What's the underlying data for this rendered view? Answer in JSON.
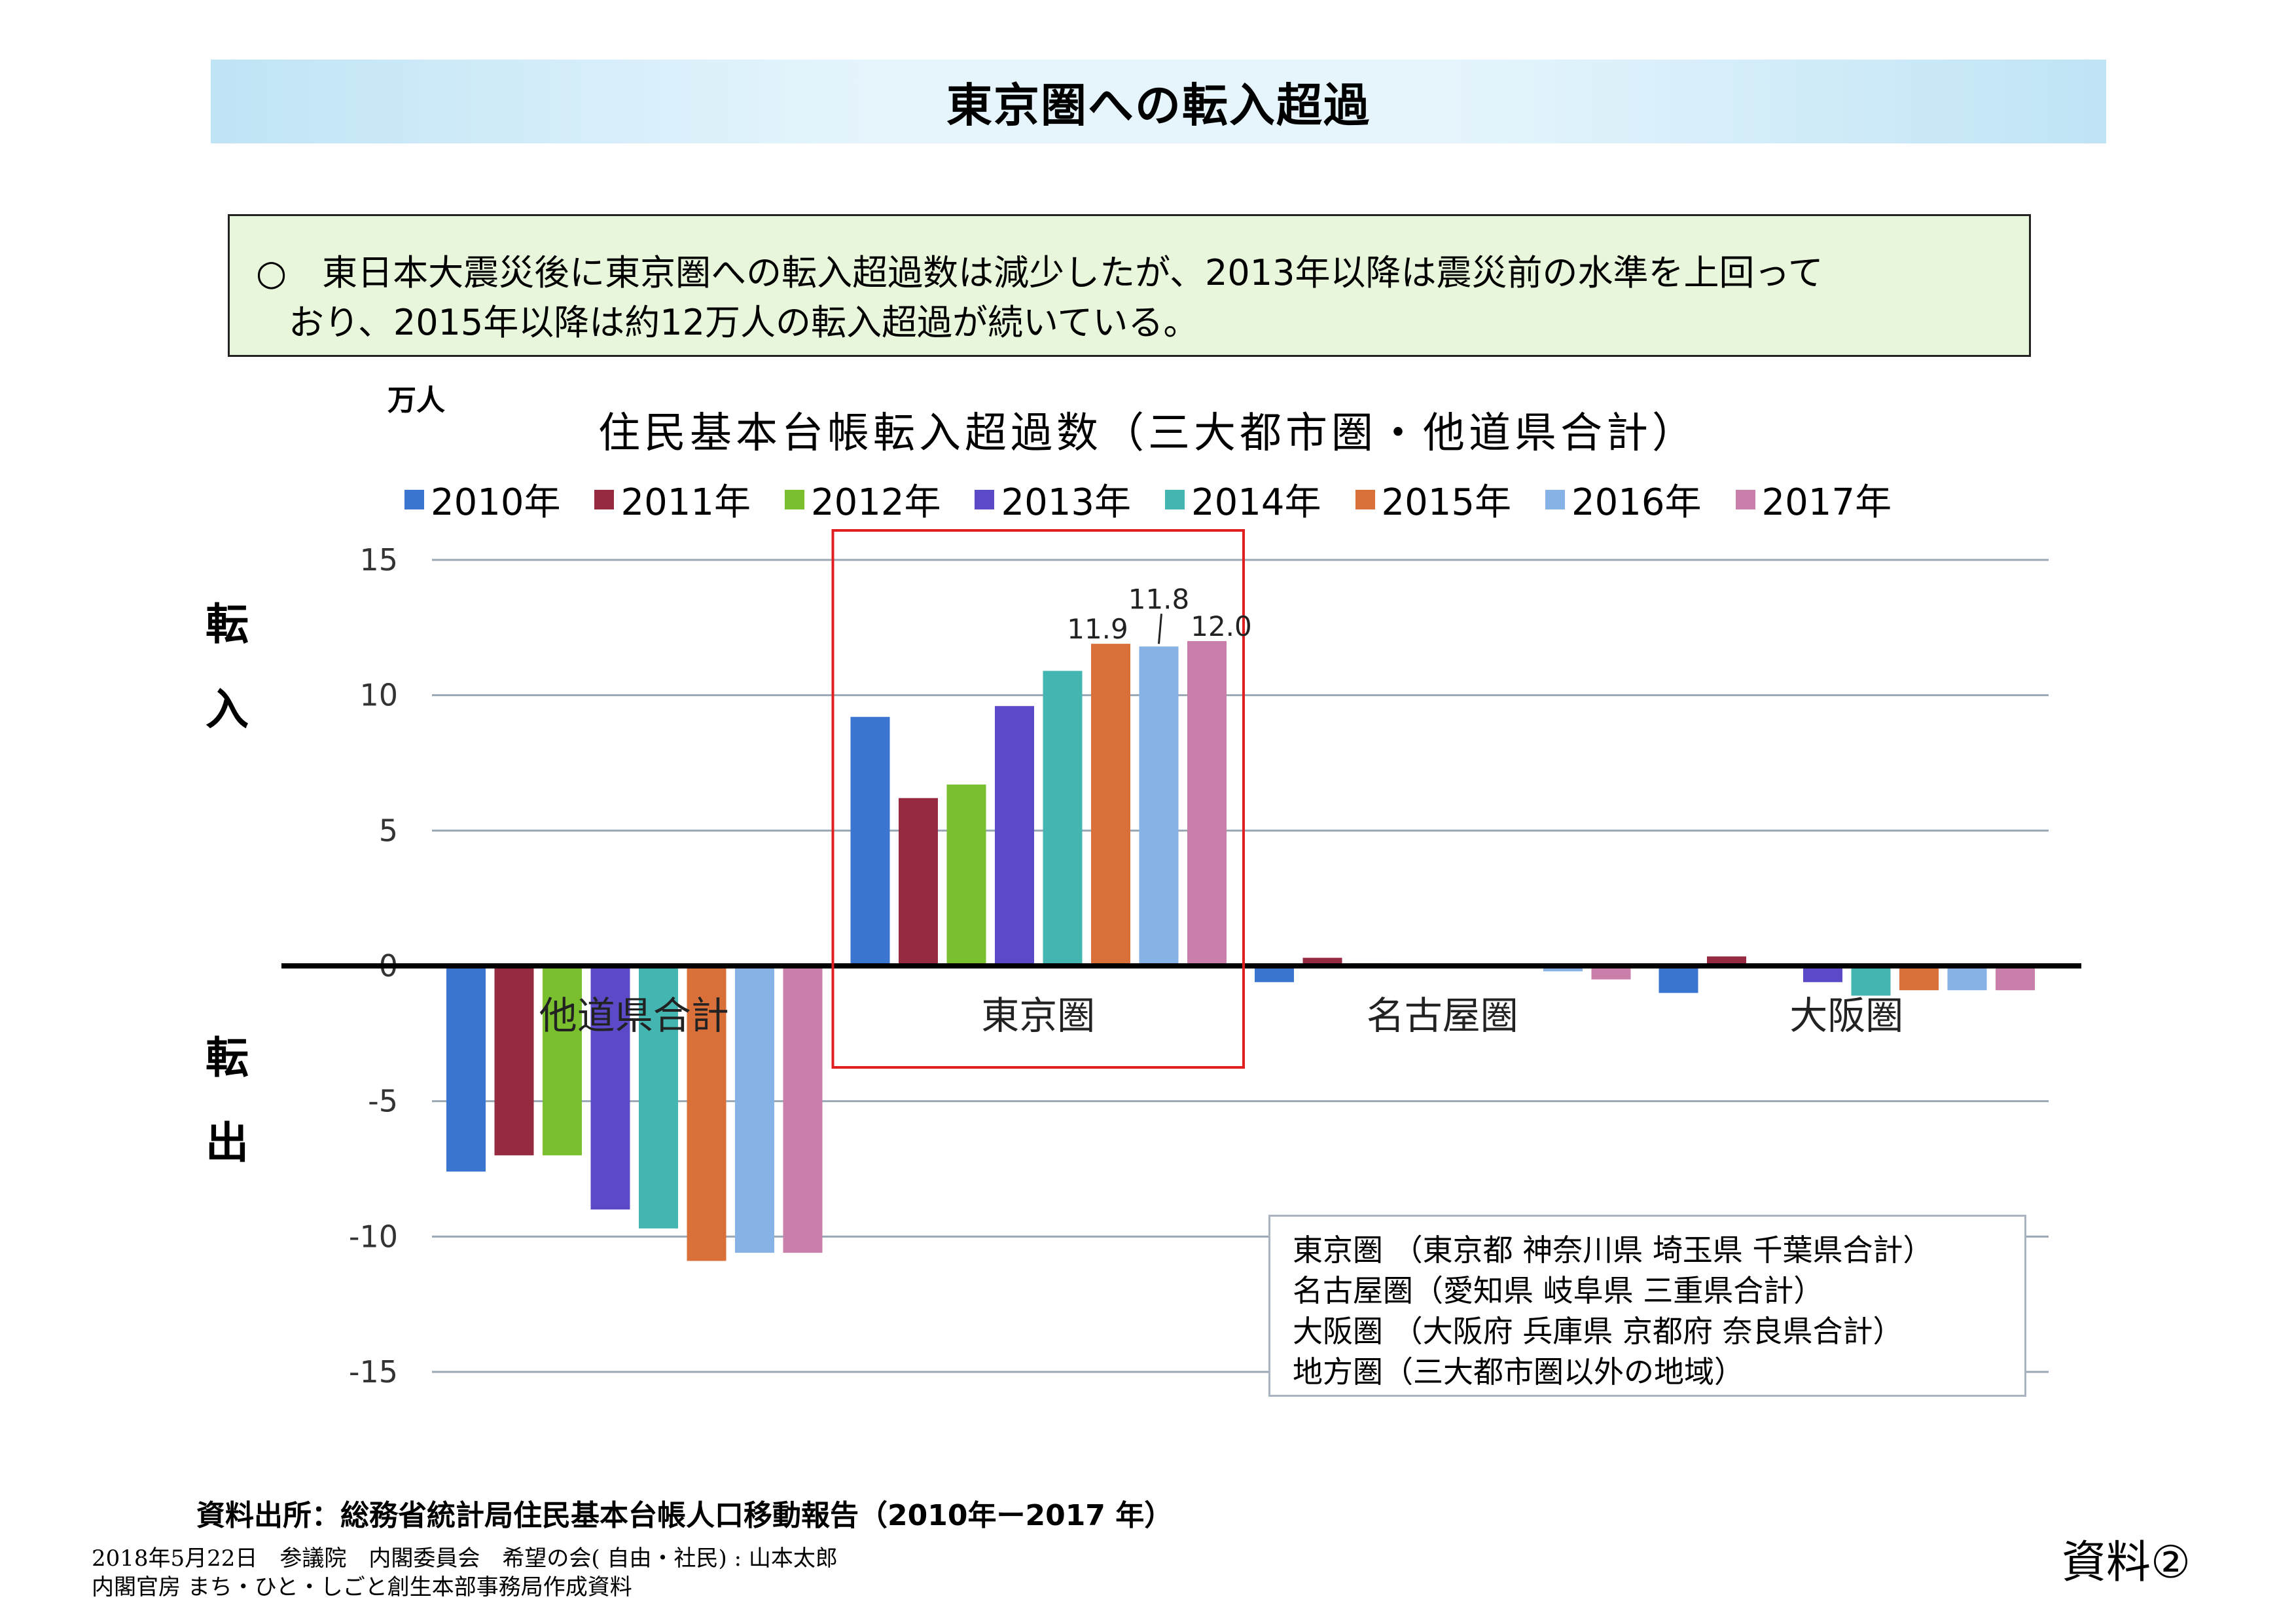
{
  "page": {
    "title": "東京圏への転入超過",
    "summary_line1": "○　東日本大震災後に東京圏への転入超過数は減少したが、2013年以降は震災前の水準を上回って",
    "summary_line2": "おり、2015年以降は約12万人の転入超過が続いている。",
    "unit": "万人",
    "side_in_1": "転",
    "side_in_2": "入",
    "side_out_1": "転",
    "side_out_2": "出",
    "notes": [
      "東京圏 （東京都 神奈川県 埼玉県 千葉県合計）",
      "名古屋圏（愛知県 岐阜県 三重県合計）",
      "大阪圏 （大阪府 兵庫県 京都府 奈良県合計）",
      "地方圏（三大都市圏以外の地域）"
    ],
    "source": "資料出所：総務省統計局住民基本台帳人口移動報告（2010年ー2017 年）",
    "footer_line1": "2018年5月22日　参議院　内閣委員会　希望の会( 自由・社民) : 山本太郎",
    "footer_line2": "内閣官房 まち・ひと・しごと創生本部事務局作成資料",
    "doc_ref": "資料②",
    "highlight_color": "#e02020"
  },
  "chart_data": {
    "type": "bar",
    "title": "住民基本台帳転入超過数（三大都市圏・他道県合計）",
    "ylabel": "万人",
    "ylim": [
      -15,
      15
    ],
    "yticks": [
      15,
      10,
      5,
      0,
      -5,
      -10,
      -15
    ],
    "grid": true,
    "legend_position": "top",
    "categories": [
      "他道県合計",
      "東京圏",
      "名古屋圏",
      "大阪圏"
    ],
    "highlighted_category": "東京圏",
    "series": [
      {
        "name": "2010年",
        "color": "#3a76cf",
        "values": [
          -7.6,
          9.2,
          -0.6,
          -1.0
        ]
      },
      {
        "name": "2011年",
        "color": "#962a40",
        "values": [
          -7.0,
          6.2,
          0.3,
          0.35
        ]
      },
      {
        "name": "2012年",
        "color": "#7abf2e",
        "values": [
          -7.0,
          6.7,
          0.1,
          0.0
        ]
      },
      {
        "name": "2013年",
        "color": "#5a4ac8",
        "values": [
          -9.0,
          9.6,
          0.0,
          -0.6
        ]
      },
      {
        "name": "2014年",
        "color": "#44b6b2",
        "values": [
          -9.7,
          10.9,
          0.0,
          -1.1
        ]
      },
      {
        "name": "2015年",
        "color": "#d9703a",
        "values": [
          -10.9,
          11.9,
          0.0,
          -0.9
        ]
      },
      {
        "name": "2016年",
        "color": "#86b2e6",
        "values": [
          -10.6,
          11.8,
          -0.2,
          -0.9
        ]
      },
      {
        "name": "2017年",
        "color": "#c97fa9",
        "values": [
          -10.6,
          12.0,
          -0.5,
          -0.9
        ]
      }
    ],
    "data_labels": [
      {
        "series": "2015年",
        "category": "東京圏",
        "text": "11.9"
      },
      {
        "series": "2016年",
        "category": "東京圏",
        "text": "11.8"
      },
      {
        "series": "2017年",
        "category": "東京圏",
        "text": "12.0"
      }
    ]
  }
}
